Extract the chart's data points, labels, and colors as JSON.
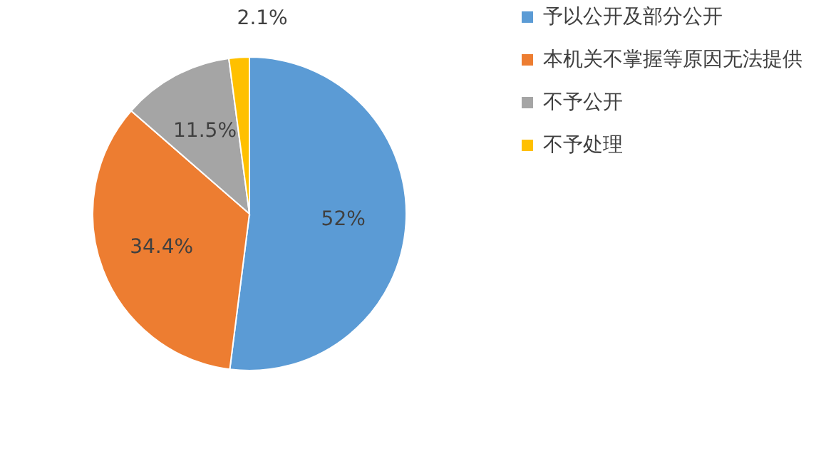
{
  "chart_data": {
    "type": "pie",
    "categories": [
      "予以公开及部分公开",
      "本机关不掌握等原因无法提供",
      "不予公开",
      "不予处理"
    ],
    "values": [
      52,
      34.4,
      11.5,
      2.1
    ],
    "colors": [
      "#5b9bd5",
      "#ed7d31",
      "#a5a5a5",
      "#ffc000"
    ],
    "value_labels": [
      "52%",
      "34.4%",
      "11.5%",
      "2.1%"
    ],
    "legend": "right"
  }
}
